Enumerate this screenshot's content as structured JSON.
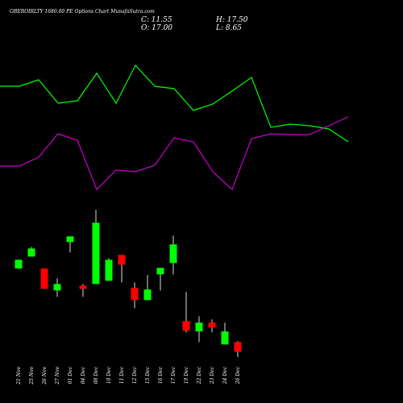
{
  "chart_data": [
    {
      "type": "candlestick",
      "title": "OBEROIRLTY 1680.00 PE Options Chart MunafaSutra.com",
      "stats": [
        "C: 11.55",
        "H: 17.50",
        "O: 17.00",
        "L: 8.65"
      ],
      "categories": [
        "21 Nov",
        "25 Nov",
        "26 Nov",
        "27 Nov",
        "01 Dec",
        "04 Dec",
        "08 Dec",
        "10 Dec",
        "11 Dec",
        "12 Dec",
        "15 Dec",
        "16 Dec",
        "17 Dec",
        "19 Dec",
        "22 Dec",
        "23 Dec",
        "24 Dec",
        "26 Dec"
      ],
      "open": [
        58.0,
        64.7,
        58.0,
        45.8,
        72.8,
        48.5,
        49.4,
        51.2,
        65.6,
        47.2,
        40.4,
        54.8,
        61.1,
        28.7,
        22.9,
        27.8,
        15.65,
        17.0
      ],
      "high": [
        63.0,
        70.1,
        58.0,
        52.6,
        76.0,
        49.4,
        90.8,
        63.8,
        65.6,
        50.3,
        54.4,
        58.4,
        76.4,
        44.9,
        31.4,
        29.6,
        27.8,
        17.5
      ],
      "low": [
        58.0,
        64.7,
        46.7,
        42.2,
        67.0,
        42.2,
        49.4,
        51.2,
        50.3,
        35.9,
        40.4,
        45.8,
        54.8,
        22.4,
        17.0,
        22.4,
        15.65,
        8.65
      ],
      "close": [
        62.9,
        69.2,
        46.7,
        49.4,
        75.95,
        46.7,
        83.6,
        62.9,
        60.2,
        40.4,
        46.3,
        58.4,
        71.5,
        23.3,
        27.8,
        25.1,
        22.9,
        11.55
      ],
      "up_color": "#00ff00",
      "down_color": "#ff0000",
      "ylim": [
        5,
        95
      ]
    },
    {
      "type": "line",
      "series": [
        {
          "color": "#00ff00",
          "values": [
            143,
            143,
            151,
            122,
            125,
            159,
            122,
            169,
            143,
            140,
            113,
            121,
            137,
            154,
            92,
            96,
            94,
            90,
            74
          ]
        },
        {
          "color": "#cc00cc",
          "values": [
            44,
            44,
            55,
            84,
            76,
            15,
            39,
            37,
            45,
            79,
            74,
            37,
            15,
            78,
            84,
            83,
            83,
            94,
            105
          ]
        }
      ],
      "ylim": [
        0,
        200
      ]
    }
  ]
}
